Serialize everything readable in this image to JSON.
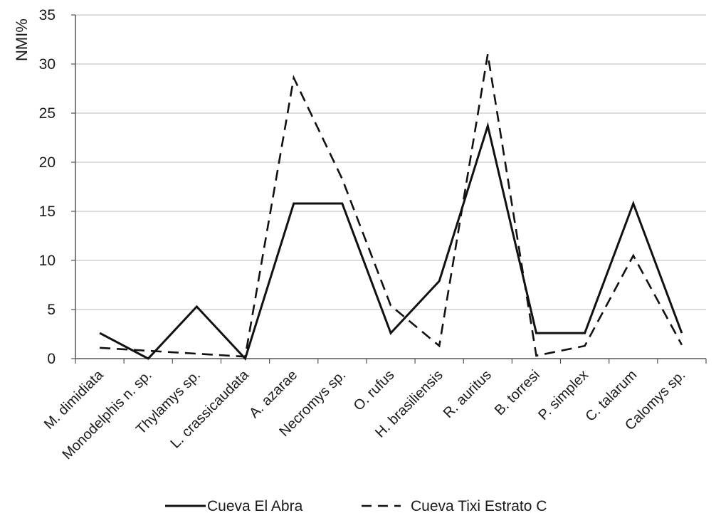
{
  "chart_data": {
    "type": "line",
    "title": "",
    "xlabel": "",
    "ylabel": "NMI%",
    "ylim": [
      0,
      35
    ],
    "yticks": [
      "0",
      "5",
      "10",
      "15",
      "20",
      "25",
      "30",
      "35"
    ],
    "grid": "horizontal",
    "legend_position": "bottom",
    "categories": [
      "M. dimidiata",
      "Monodelphis n. sp.",
      "Thylamys sp.",
      "L. crassicaudata",
      "A. azarae",
      "Necromys sp.",
      "O. rufus",
      "H. brasiliensis",
      "R. auritus",
      "B. torresi",
      "P. simplex",
      "C. talarum",
      "Calomys sp."
    ],
    "series": [
      {
        "name": "Cueva El Abra",
        "style": "solid",
        "color": "#111111",
        "values": [
          2.6,
          0,
          5.3,
          0,
          15.8,
          15.8,
          2.6,
          7.9,
          23.7,
          2.6,
          2.6,
          15.8,
          2.6
        ]
      },
      {
        "name": "Cueva Tixi Estrato C",
        "style": "dashed",
        "color": "#111111",
        "values": [
          1.1,
          0.8,
          0.5,
          0.2,
          28.6,
          18.3,
          5.4,
          1.3,
          31.0,
          0.3,
          1.3,
          10.5,
          1.4
        ]
      }
    ]
  }
}
